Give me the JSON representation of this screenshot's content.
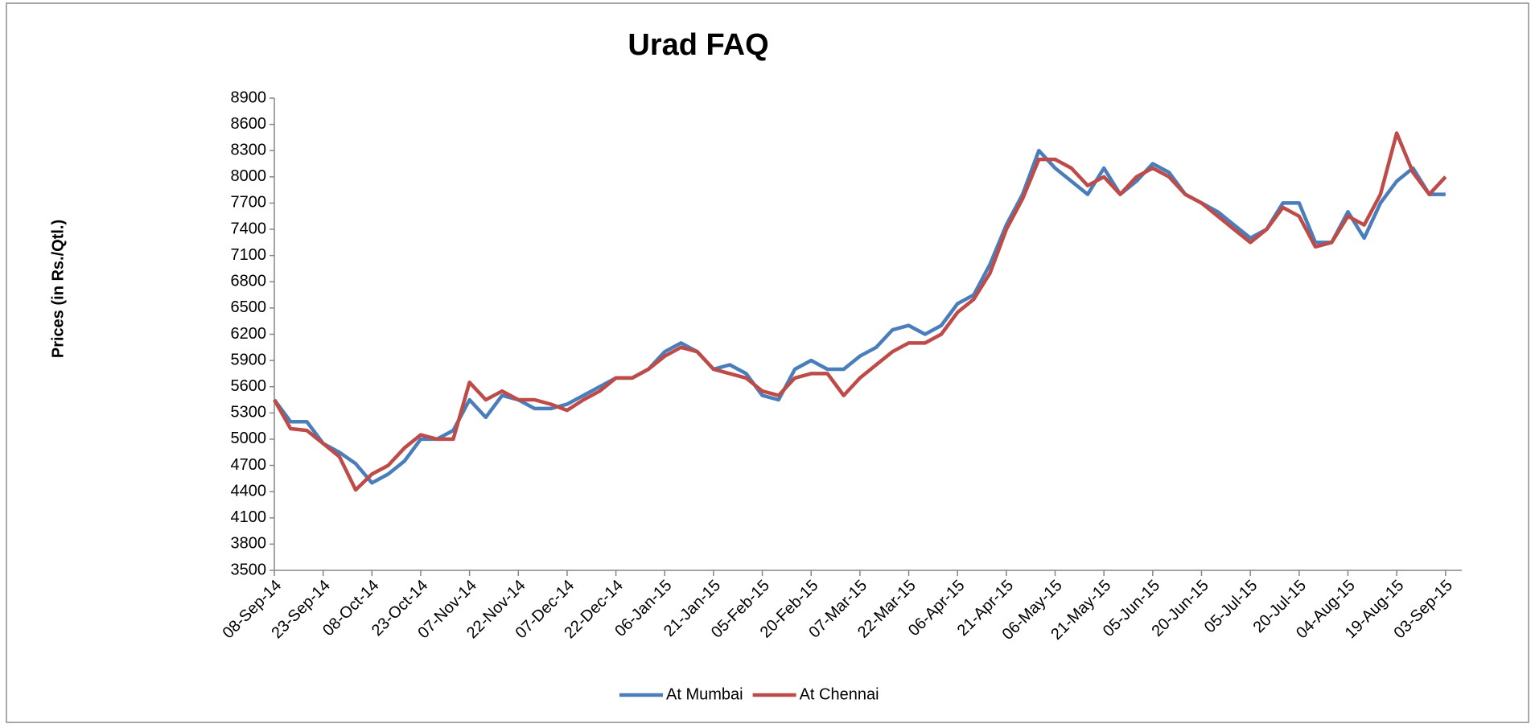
{
  "chart_data": {
    "type": "line",
    "title": "Urad FAQ",
    "ylabel": "Prices (in Rs./Qtl.)",
    "x": [
      "08-Sep-14",
      "13-Sep-14",
      "18-Sep-14",
      "23-Sep-14",
      "28-Sep-14",
      "03-Oct-14",
      "08-Oct-14",
      "13-Oct-14",
      "18-Oct-14",
      "23-Oct-14",
      "28-Oct-14",
      "02-Nov-14",
      "07-Nov-14",
      "12-Nov-14",
      "17-Nov-14",
      "22-Nov-14",
      "27-Nov-14",
      "02-Dec-14",
      "07-Dec-14",
      "12-Dec-14",
      "17-Dec-14",
      "22-Dec-14",
      "27-Dec-14",
      "01-Jan-15",
      "06-Jan-15",
      "11-Jan-15",
      "16-Jan-15",
      "21-Jan-15",
      "26-Jan-15",
      "31-Jan-15",
      "05-Feb-15",
      "10-Feb-15",
      "15-Feb-15",
      "20-Feb-15",
      "25-Feb-15",
      "02-Mar-15",
      "07-Mar-15",
      "12-Mar-15",
      "17-Mar-15",
      "22-Mar-15",
      "27-Mar-15",
      "01-Apr-15",
      "06-Apr-15",
      "11-Apr-15",
      "16-Apr-15",
      "21-Apr-15",
      "26-Apr-15",
      "01-May-15",
      "06-May-15",
      "11-May-15",
      "16-May-15",
      "21-May-15",
      "26-May-15",
      "31-May-15",
      "05-Jun-15",
      "10-Jun-15",
      "15-Jun-15",
      "20-Jun-15",
      "25-Jun-15",
      "30-Jun-15",
      "05-Jul-15",
      "10-Jul-15",
      "15-Jul-15",
      "20-Jul-15",
      "25-Jul-15",
      "30-Jul-15",
      "04-Aug-15",
      "09-Aug-15",
      "14-Aug-15",
      "19-Aug-15",
      "24-Aug-15",
      "29-Aug-15",
      "03-Sep-15"
    ],
    "series": [
      {
        "name": "At Mumbai",
        "color": "#4a7ebb",
        "values": [
          5450,
          5200,
          5200,
          4950,
          4850,
          4720,
          4500,
          4600,
          4750,
          5000,
          5000,
          5100,
          5450,
          5250,
          5500,
          5450,
          5350,
          5350,
          5400,
          5500,
          5600,
          5700,
          5700,
          5800,
          6000,
          6100,
          6000,
          5800,
          5850,
          5750,
          5500,
          5450,
          5800,
          5900,
          5800,
          5800,
          5950,
          6050,
          6250,
          6300,
          6200,
          6300,
          6550,
          6650,
          7000,
          7450,
          7800,
          8300,
          8100,
          7950,
          7800,
          8100,
          7800,
          7950,
          8150,
          8050,
          7800,
          7700,
          7600,
          7450,
          7300,
          7400,
          7700,
          7700,
          7250,
          7250,
          7600,
          7300,
          7700,
          7950,
          8100,
          7800,
          7800
        ]
      },
      {
        "name": "At Chennai",
        "color": "#be4b48",
        "values": [
          5450,
          5120,
          5100,
          4950,
          4800,
          4420,
          4600,
          4700,
          4900,
          5050,
          5000,
          5000,
          5650,
          5450,
          5550,
          5450,
          5450,
          5400,
          5330,
          5450,
          5550,
          5700,
          5700,
          5800,
          5950,
          6050,
          6000,
          5800,
          5750,
          5700,
          5550,
          5500,
          5700,
          5750,
          5750,
          5500,
          5700,
          5850,
          6000,
          6100,
          6100,
          6200,
          6450,
          6600,
          6900,
          7400,
          7750,
          8200,
          8200,
          8100,
          7900,
          8000,
          7800,
          8000,
          8100,
          8000,
          7800,
          7700,
          7550,
          7400,
          7250,
          7400,
          7650,
          7550,
          7200,
          7250,
          7550,
          7450,
          7800,
          8500,
          8050,
          7800,
          8000
        ]
      }
    ],
    "xlim": [
      "08-Sep-14",
      "08-Sep-15"
    ],
    "xticks": [
      "08-Sep-14",
      "23-Sep-14",
      "08-Oct-14",
      "23-Oct-14",
      "07-Nov-14",
      "22-Nov-14",
      "07-Dec-14",
      "22-Dec-14",
      "06-Jan-15",
      "21-Jan-15",
      "05-Feb-15",
      "20-Feb-15",
      "07-Mar-15",
      "22-Mar-15",
      "06-Apr-15",
      "21-Apr-15",
      "06-May-15",
      "21-May-15",
      "05-Jun-15",
      "20-Jun-15",
      "05-Jul-15",
      "20-Jul-15",
      "04-Aug-15",
      "19-Aug-15",
      "03-Sep-15"
    ],
    "ylim": [
      3500,
      8900
    ],
    "yticks": [
      3500,
      3800,
      4100,
      4400,
      4700,
      5000,
      5300,
      5600,
      5900,
      6200,
      6500,
      6800,
      7100,
      7400,
      7700,
      8000,
      8300,
      8600,
      8900
    ],
    "legend": "bottom",
    "grid": false
  }
}
